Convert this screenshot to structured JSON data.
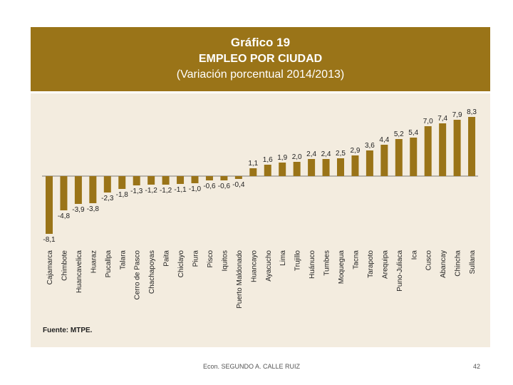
{
  "chart_data": {
    "type": "bar",
    "title": "Gráfico 19",
    "subtitle": "EMPLEO POR CIUDAD",
    "subtitle2": "(Variación porcentual 2014/2013)",
    "categories": [
      "Cajamarca",
      "Chimbote",
      "Huancavelica",
      "Huaraz",
      "Pucallpa",
      "Talara",
      "Cerro de Pasco",
      "Chachapoyas",
      "Paita",
      "Chiclayo",
      "Piura",
      "Pisco",
      "Iquitos",
      "Puerto Maldonado",
      "Huancayo",
      "Ayacucho",
      "Lima",
      "Trujillo",
      "Huánuco",
      "Tumbes",
      "Moquegua",
      "Tacna",
      "Tarapoto",
      "Arequipa",
      "Puno-Juliaca",
      "Ica",
      "Cusco",
      "Abancay",
      "Chincha",
      "Sullana"
    ],
    "values": [
      -8.1,
      -4.8,
      -3.9,
      -3.8,
      -2.3,
      -1.8,
      -1.3,
      -1.2,
      -1.2,
      -1.1,
      -1.0,
      -0.6,
      -0.6,
      -0.4,
      1.1,
      1.6,
      1.9,
      2.0,
      2.4,
      2.4,
      2.5,
      2.9,
      3.6,
      4.4,
      5.2,
      5.4,
      7.0,
      7.4,
      7.9,
      8.3
    ],
    "value_labels": [
      "-8,1",
      "-4,8",
      "-3,9",
      "-3,8",
      "-2,3",
      "-1,8",
      "-1,3",
      "-1,2",
      "-1,2",
      "-1,1",
      "-1,0",
      "-0,6",
      "-0,6",
      "-0,4",
      "1,1",
      "1,6",
      "1,9",
      "2,0",
      "2,4",
      "2,4",
      "2,5",
      "2,9",
      "3,6",
      "4,4",
      "5,2",
      "5,4",
      "7,0",
      "7,4",
      "7,9",
      "8,3"
    ],
    "ylabel": "",
    "xlabel": "",
    "color": "#9a7418",
    "source": "Fuente: MTPE."
  },
  "footer": {
    "author": "Econ. SEGUNDO A. CALLE RUIZ",
    "page": "42"
  },
  "colors": {
    "header_bg": "#9a7418",
    "panel_bg": "#f3ecdf"
  }
}
